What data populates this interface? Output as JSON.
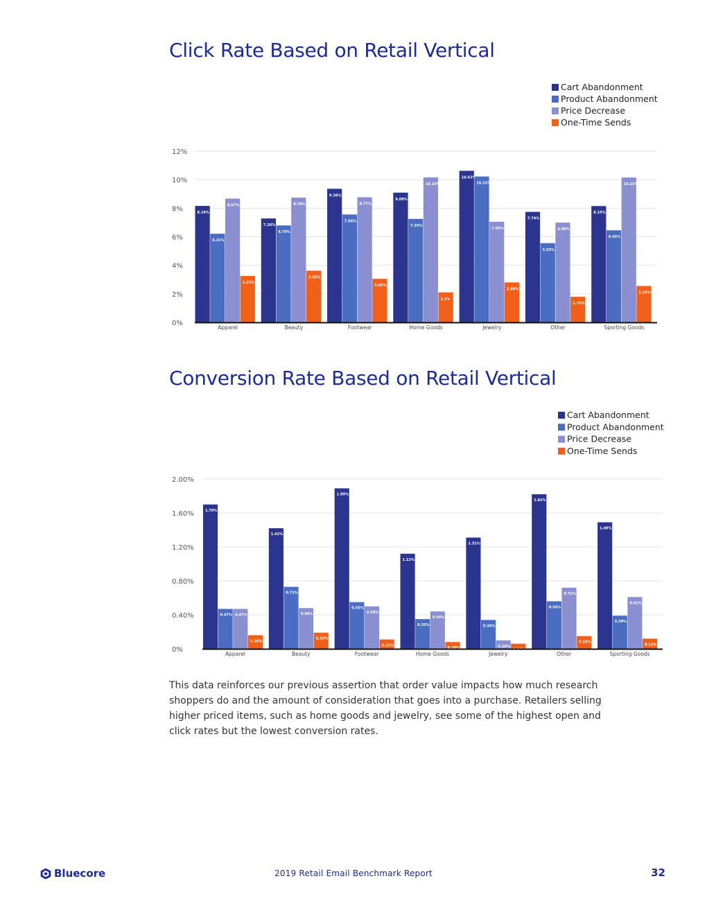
{
  "page": {
    "body_text": "This data reinforces our previous assertion that order value impacts how much research shoppers do and the amount of consideration that goes into a purchase. Retailers selling higher priced items, such as home goods and jewelry, see some of the highest open and click rates but the lowest conversion rates.",
    "footer": {
      "brand": "Bluecore",
      "report_title": "2019 Retail Email Benchmark Report",
      "page_number": "32"
    },
    "colors": {
      "title": "#1b2a9c",
      "cart": "#2b3590",
      "product": "#4a6dc2",
      "price": "#8a8fd2",
      "onetime": "#f06018"
    }
  },
  "chart_data": [
    {
      "type": "bar",
      "title": "Click Rate Based on Retail Vertical",
      "xlabel": "",
      "ylabel": "",
      "categories": [
        "Apparel",
        "Beauty",
        "Footwear",
        "Home Goods",
        "Jewelry",
        "Other",
        "Sporting Goods"
      ],
      "ylim": [
        0,
        12
      ],
      "yticks": [
        0,
        2,
        4,
        6,
        8,
        10,
        12
      ],
      "ytick_labels": [
        "0%",
        "2%",
        "4%",
        "6%",
        "8%",
        "10%",
        "12%"
      ],
      "legend_position": "top-right",
      "grid": true,
      "series": [
        {
          "name": "Cart Abandonment",
          "color": "#2b3590",
          "values": [
            8.16,
            7.28,
            9.36,
            9.09,
            10.62,
            7.74,
            8.15
          ],
          "labels": [
            "8.16%",
            "7.28%",
            "9.36%",
            "9.09%",
            "10.62%",
            "7.74%",
            "8.15%"
          ]
        },
        {
          "name": "Product Abandonment",
          "color": "#4a6dc2",
          "values": [
            6.21,
            6.79,
            7.56,
            7.25,
            10.22,
            5.55,
            6.45
          ],
          "labels": [
            "6.21%",
            "6.79%",
            "7.56%",
            "7.25%",
            "10.22%",
            "5.55%",
            "6.45%"
          ]
        },
        {
          "name": "Price Decrease",
          "color": "#8a8fd2",
          "values": [
            8.67,
            8.74,
            8.77,
            10.16,
            7.05,
            6.99,
            10.15
          ],
          "labels": [
            "8.67%",
            "8.74%",
            "8.77%",
            "10.16%",
            "7.05%",
            "6.99%",
            "10.15%"
          ]
        },
        {
          "name": "One-Time Sends",
          "color": "#f06018",
          "values": [
            3.25,
            3.62,
            3.05,
            2.1,
            2.8,
            1.79,
            2.55
          ],
          "labels": [
            "3.25%",
            "3.62%",
            "3.05%",
            "2.1%",
            "2.80%",
            "1.79%",
            "2.55%"
          ]
        }
      ]
    },
    {
      "type": "bar",
      "title": "Conversion Rate Based on Retail Vertical",
      "xlabel": "",
      "ylabel": "",
      "categories": [
        "Apparel",
        "Beauty",
        "Footwear",
        "Home Goods",
        "Jewelry",
        "Other",
        "Sporting Goods"
      ],
      "ylim": [
        0,
        2
      ],
      "yticks": [
        0,
        0.4,
        0.8,
        1.2,
        1.6,
        2.0
      ],
      "ytick_labels": [
        "0%",
        "0.40%",
        "0.80%",
        "1.20%",
        "1.60%",
        "2.00%"
      ],
      "legend_position": "top-right",
      "grid": true,
      "series": [
        {
          "name": "Cart Abandonment",
          "color": "#2b3590",
          "values": [
            1.7,
            1.42,
            1.89,
            1.12,
            1.31,
            1.82,
            1.49
          ],
          "labels": [
            "1.70%",
            "1.42%",
            "1.89%",
            "1.12%",
            "1.31%",
            "1.82%",
            "1.49%"
          ]
        },
        {
          "name": "Product Abandonment",
          "color": "#4a6dc2",
          "values": [
            0.47,
            0.73,
            0.55,
            0.35,
            0.34,
            0.56,
            0.39
          ],
          "labels": [
            "0.47%",
            "0.73%",
            "0.55%",
            "0.35%",
            "0.34%",
            "0.56%",
            "0.39%"
          ]
        },
        {
          "name": "Price Decrease",
          "color": "#8a8fd2",
          "values": [
            0.47,
            0.48,
            0.5,
            0.44,
            0.1,
            0.72,
            0.61
          ],
          "labels": [
            "0.47%",
            "0.48%",
            "0.50%",
            "0.44%",
            "0.10%",
            "0.72%",
            "0.61%"
          ]
        },
        {
          "name": "One-Time Sends",
          "color": "#f06018",
          "values": [
            0.16,
            0.19,
            0.11,
            0.08,
            0.06,
            0.15,
            0.12
          ],
          "labels": [
            "0.16%",
            "0.19%",
            "0.11%",
            "0.08%",
            "0.06%",
            "0.15%",
            "0.12%"
          ]
        }
      ]
    }
  ]
}
